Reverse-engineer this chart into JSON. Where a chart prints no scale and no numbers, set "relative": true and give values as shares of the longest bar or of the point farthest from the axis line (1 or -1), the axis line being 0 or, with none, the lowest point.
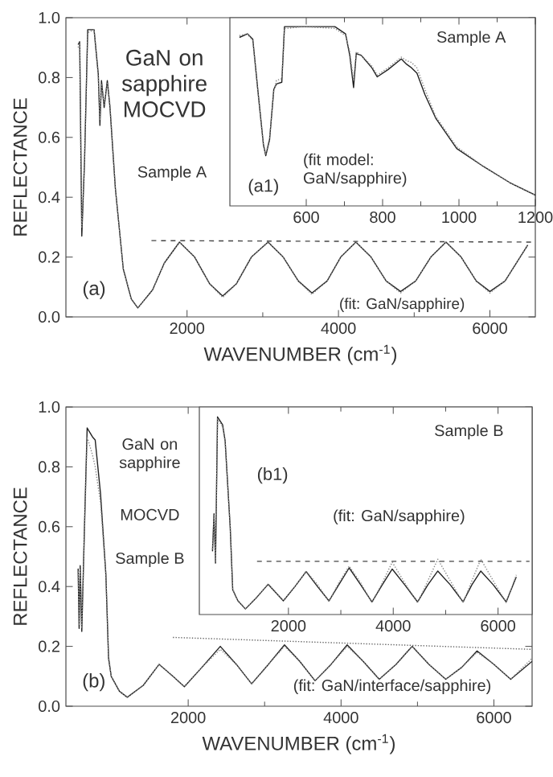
{
  "chart_data": [
    {
      "type": "line",
      "xlabel": "WAVENUMBER (cm$^{-1}$)",
      "ylabel": "REFLECTANCE",
      "xlim": [
        400,
        6600
      ],
      "ylim": [
        0,
        1
      ],
      "xticks": [
        2000,
        4000,
        6000
      ],
      "yticks": [
        {
          "value": 0,
          "label": "0.0"
        },
        {
          "value": 0.2,
          "label": "0.2"
        },
        {
          "value": 0.4,
          "label": "0.4"
        },
        {
          "value": 0.6,
          "label": "0.6"
        },
        {
          "value": 0.8,
          "label": "0.8"
        },
        {
          "value": 1,
          "label": "1.0"
        }
      ],
      "series": [
        {
          "color": "#222222",
          "line_style": "solid",
          "x": [
            561,
            582,
            610,
            646,
            688,
            772,
            828,
            849,
            870,
            905,
            947,
            982,
            1053,
            1158,
            1263,
            1350,
            1544,
            1700,
            1900,
            2100,
            2300,
            2470,
            2650,
            2850,
            3070,
            3270,
            3470,
            3650,
            3850,
            4030,
            4230,
            4430,
            4630,
            4820,
            5020,
            5220,
            5420,
            5620,
            5820,
            6000,
            6200,
            6500
          ],
          "values": [
            0.91,
            0.92,
            0.27,
            0.52,
            0.96,
            0.96,
            0.81,
            0.64,
            0.79,
            0.7,
            0.79,
            0.7,
            0.43,
            0.16,
            0.06,
            0.03,
            0.09,
            0.18,
            0.25,
            0.2,
            0.11,
            0.07,
            0.11,
            0.2,
            0.25,
            0.2,
            0.12,
            0.08,
            0.12,
            0.2,
            0.25,
            0.2,
            0.12,
            0.085,
            0.12,
            0.2,
            0.25,
            0.2,
            0.12,
            0.085,
            0.12,
            0.24
          ]
        },
        {
          "color": "#888888",
          "line_style": "dotted",
          "x": [
            561,
            582,
            610,
            646,
            688,
            772,
            828,
            849,
            870,
            905,
            947,
            982,
            1053,
            1158,
            1263,
            1350,
            1544,
            1700,
            1900,
            2100,
            2300,
            2470,
            2650,
            2850,
            3070,
            3270,
            3470,
            3650,
            3850,
            4030,
            4230,
            4430,
            4630,
            4820,
            5020,
            5220,
            5420,
            5620,
            5820,
            6000,
            6200,
            6500
          ],
          "values": [
            0.9,
            0.92,
            0.3,
            0.52,
            0.95,
            0.96,
            0.8,
            0.66,
            0.78,
            0.71,
            0.78,
            0.71,
            0.43,
            0.16,
            0.06,
            0.03,
            0.09,
            0.18,
            0.25,
            0.2,
            0.11,
            0.065,
            0.11,
            0.2,
            0.25,
            0.2,
            0.12,
            0.075,
            0.12,
            0.2,
            0.25,
            0.2,
            0.12,
            0.08,
            0.12,
            0.2,
            0.25,
            0.2,
            0.12,
            0.08,
            0.12,
            0.24
          ]
        },
        {
          "color": "#444444",
          "line_style": "dashed",
          "x": [
            1530,
            6600
          ],
          "values": [
            0.255,
            0.25
          ]
        }
      ],
      "annotations": [
        "GaN on sapphire MOCVD",
        "Sample A",
        "(a)",
        "(fit: GaN/sapphire)"
      ]
    },
    {
      "type": "line",
      "relative": true,
      "tick_labels": "x",
      "xlim": [
        400,
        1200
      ],
      "xticks": [
        600,
        800,
        1000,
        1200
      ],
      "series": [
        {
          "color": "#222222",
          "line_style": "solid",
          "x": [
            425,
            446,
            460,
            474,
            488,
            494,
            504,
            515,
            522,
            536,
            543,
            550,
            592,
            675,
            703,
            714,
            724,
            731,
            744,
            772,
            786,
            814,
            849,
            863,
            876,
            890,
            911,
            939,
            994,
            1064,
            1133,
            1200
          ],
          "values": [
            0.94,
            0.96,
            0.93,
            0.63,
            0.34,
            0.28,
            0.37,
            0.65,
            0.68,
            0.69,
            1.0,
            1.0,
            1.0,
            1.0,
            0.96,
            0.84,
            0.66,
            0.85,
            0.84,
            0.77,
            0.72,
            0.76,
            0.82,
            0.79,
            0.77,
            0.74,
            0.62,
            0.49,
            0.32,
            0.22,
            0.13,
            0.06
          ]
        },
        {
          "color": "#888888",
          "line_style": "dotted",
          "x": [
            425,
            446,
            460,
            474,
            488,
            494,
            504,
            515,
            522,
            536,
            543,
            550,
            592,
            675,
            703,
            714,
            724,
            731,
            744,
            772,
            786,
            814,
            849,
            863,
            876,
            890,
            911,
            939,
            994,
            1064,
            1133,
            1200
          ],
          "values": [
            0.95,
            0.96,
            0.92,
            0.62,
            0.33,
            0.29,
            0.38,
            0.64,
            0.7,
            0.71,
            0.99,
            0.99,
            1.0,
            0.99,
            0.95,
            0.86,
            0.7,
            0.86,
            0.84,
            0.78,
            0.73,
            0.77,
            0.83,
            0.81,
            0.8,
            0.77,
            0.65,
            0.5,
            0.33,
            0.22,
            0.13,
            0.06
          ]
        }
      ],
      "annotations": [
        "Sample A",
        "(a1)",
        "(fit model: GaN/sapphire)"
      ]
    },
    {
      "type": "line",
      "xlabel": "WAVENUMBER (cm$^{-1}$)",
      "ylabel": "REFLECTANCE",
      "xlim": [
        400,
        6500
      ],
      "ylim": [
        0,
        1
      ],
      "xticks": [
        2000,
        4000,
        6000
      ],
      "yticks": [
        {
          "value": 0,
          "label": "0.0"
        },
        {
          "value": 0.2,
          "label": "0.2"
        },
        {
          "value": 0.4,
          "label": "0.4"
        },
        {
          "value": 0.6,
          "label": "0.6"
        },
        {
          "value": 0.8,
          "label": "0.8"
        },
        {
          "value": 1,
          "label": "1.0"
        }
      ],
      "series": [
        {
          "color": "#222222",
          "line_style": "solid",
          "x": [
            560,
            573,
            587,
            608,
            643,
            678,
            748,
            783,
            853,
            923,
            958,
            993,
            1100,
            1203,
            1413,
            1620,
            1800,
            1950,
            2180,
            2420,
            2630,
            2830,
            3050,
            3260,
            3460,
            3660,
            3870,
            4080,
            4290,
            4500,
            4720,
            4930,
            5150,
            5370,
            5580,
            5780,
            6000,
            6220,
            6500
          ],
          "values": [
            0.46,
            0.26,
            0.47,
            0.25,
            0.6,
            0.93,
            0.9,
            0.89,
            0.71,
            0.44,
            0.16,
            0.1,
            0.05,
            0.03,
            0.07,
            0.14,
            0.1,
            0.065,
            0.13,
            0.2,
            0.14,
            0.075,
            0.14,
            0.205,
            0.15,
            0.085,
            0.14,
            0.205,
            0.15,
            0.09,
            0.14,
            0.2,
            0.14,
            0.09,
            0.13,
            0.185,
            0.14,
            0.09,
            0.15
          ]
        },
        {
          "color": "#888888",
          "line_style": "dotted",
          "x": [
            560,
            573,
            587,
            608,
            643,
            678,
            748,
            783,
            853,
            923,
            958,
            993,
            1100,
            1203,
            1413,
            1620,
            1800,
            1950,
            2180,
            2420,
            2630,
            2830,
            3050,
            3260,
            3460,
            3660,
            3870,
            4080,
            4290,
            4500,
            4720,
            4930,
            5150,
            5370,
            5580,
            5780,
            6000,
            6220,
            6500
          ],
          "values": [
            0.45,
            0.27,
            0.46,
            0.26,
            0.58,
            0.9,
            0.84,
            0.8,
            0.68,
            0.44,
            0.17,
            0.1,
            0.05,
            0.03,
            0.07,
            0.14,
            0.1,
            0.065,
            0.13,
            0.19,
            0.14,
            0.075,
            0.14,
            0.2,
            0.15,
            0.085,
            0.14,
            0.2,
            0.15,
            0.09,
            0.14,
            0.2,
            0.14,
            0.09,
            0.13,
            0.18,
            0.14,
            0.09,
            0.16
          ]
        },
        {
          "color": "#666666",
          "line_style": "dotted",
          "x": [
            1800,
            6500
          ],
          "values": [
            0.23,
            0.19
          ]
        }
      ],
      "annotations": [
        "GaN on sapphire",
        "MOCVD",
        "Sample B",
        "(b)",
        "(fit: GaN/interface/sapphire)"
      ]
    },
    {
      "type": "line",
      "relative": true,
      "tick_labels": "x",
      "xlim": [
        300,
        6650
      ],
      "xticks": [
        2000,
        4000,
        6000
      ],
      "series": [
        {
          "color": "#222222",
          "line_style": "solid",
          "x": [
            551,
            580,
            609,
            647,
            744,
            792,
            889,
            937,
            1034,
            1179,
            1372,
            1614,
            1903,
            2120,
            2338,
            2560,
            2773,
            2960,
            3159,
            3380,
            3594,
            3790,
            3981,
            4220,
            4464,
            4660,
            4850,
            5090,
            5333,
            5500,
            5671,
            5910,
            6155,
            6348
          ],
          "values": [
            0.32,
            0.51,
            0.26,
            1.0,
            0.96,
            0.88,
            0.44,
            0.125,
            0.07,
            0.028,
            0.08,
            0.153,
            0.069,
            0.14,
            0.217,
            0.14,
            0.069,
            0.15,
            0.236,
            0.15,
            0.064,
            0.15,
            0.23,
            0.15,
            0.064,
            0.15,
            0.22,
            0.15,
            0.064,
            0.15,
            0.22,
            0.15,
            0.064,
            0.19
          ]
        },
        {
          "color": "#888888",
          "line_style": "dotted",
          "x": [
            551,
            580,
            609,
            647,
            744,
            792,
            889,
            937,
            1034,
            1179,
            1372,
            1614,
            1903,
            2120,
            2338,
            2560,
            2773,
            2960,
            3159,
            3380,
            3594,
            3790,
            3981,
            4220,
            4464,
            4660,
            4850,
            5090,
            5333,
            5500,
            5671,
            5910,
            6155,
            6348
          ],
          "values": [
            0.33,
            0.5,
            0.27,
            0.99,
            0.95,
            0.87,
            0.45,
            0.13,
            0.07,
            0.03,
            0.08,
            0.155,
            0.07,
            0.14,
            0.22,
            0.15,
            0.065,
            0.16,
            0.245,
            0.16,
            0.06,
            0.16,
            0.265,
            0.16,
            0.06,
            0.17,
            0.28,
            0.17,
            0.06,
            0.17,
            0.28,
            0.17,
            0.06,
            0.2
          ]
        },
        {
          "color": "#444444",
          "line_style": "dashed",
          "x": [
            1401,
            6600
          ],
          "values": [
            0.269,
            0.269
          ]
        }
      ],
      "annotations": [
        "Sample B",
        "(b1)",
        "(fit: GaN/sapphire)"
      ]
    }
  ]
}
